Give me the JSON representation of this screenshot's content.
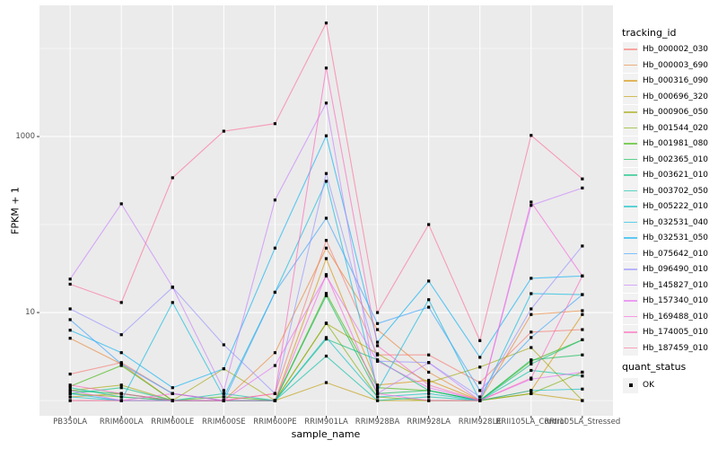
{
  "figure": {
    "panel_bg": "#EBEBEB",
    "grid_color": "#FFFFFF",
    "axis_text_color": "#4D4D4D",
    "legend_key_bg": "#F2F2F2",
    "point_color": "#000000"
  },
  "chart_data": {
    "type": "line",
    "title": "",
    "xlabel": "sample_name",
    "ylabel": "FPKM + 1",
    "y_scale": "log10",
    "ylim_log10": [
      -0.173,
      4.49
    ],
    "y_major_ticks": [
      {
        "label": "10",
        "value": 10
      },
      {
        "label": "1000",
        "value": 1000
      }
    ],
    "y_minor_gridlines": [
      1,
      100,
      10000
    ],
    "grid": "on",
    "legend_position": "right",
    "legend_title": "tracking_id",
    "point_legend_title": "quant_status",
    "point_legend_label": "OK",
    "categories": [
      "PB350LA",
      "RRIM600LA",
      "RRIM600LE",
      "RRIM600SE",
      "RRIM600PE",
      "RRIM901LA",
      "RRIM928BA",
      "RRIM928LA",
      "RRIM928LE",
      "RRII105LA_Control",
      "RRII105LA_Stressed"
    ],
    "series": [
      {
        "name": "Hb_000002_030",
        "color": "#F8766D",
        "values": [
          2.0,
          2.7,
          1.2,
          1.0,
          1.2,
          66,
          3.3,
          3.3,
          1.6,
          6.0,
          6.4
        ]
      },
      {
        "name": "Hb_000003_690",
        "color": "#EA8331",
        "values": [
          5.1,
          2.6,
          1.0,
          1.0,
          3.5,
          54,
          6.4,
          2.1,
          1.0,
          9.5,
          10.5
        ]
      },
      {
        "name": "Hb_000316_090",
        "color": "#D89000",
        "values": [
          1.1,
          1.2,
          1.0,
          1.0,
          1.0,
          41,
          1.5,
          1.7,
          1.0,
          1.3,
          9.5
        ]
      },
      {
        "name": "Hb_000696_320",
        "color": "#C09B00",
        "values": [
          1.0,
          1.0,
          1.0,
          1.0,
          1.0,
          1.6,
          1.0,
          1.0,
          1.0,
          1.2,
          1.0
        ]
      },
      {
        "name": "Hb_000906_050",
        "color": "#A3A500",
        "values": [
          1.3,
          1.5,
          1.0,
          2.3,
          1.0,
          7.5,
          3.4,
          1.6,
          2.4,
          4.0,
          1.0
        ]
      },
      {
        "name": "Hb_001544_020",
        "color": "#7CAE00",
        "values": [
          1.2,
          1.1,
          1.0,
          1.0,
          1.0,
          7.6,
          1.1,
          1.0,
          1.0,
          1.2,
          2.1
        ]
      },
      {
        "name": "Hb_001981_080",
        "color": "#39B600",
        "values": [
          1.45,
          2.5,
          1.0,
          1.1,
          1.0,
          16.5,
          1.4,
          1.3,
          1.0,
          2.8,
          4.9
        ]
      },
      {
        "name": "Hb_002365_010",
        "color": "#00BB4E",
        "values": [
          1.3,
          1.2,
          1.0,
          1.0,
          1.0,
          15.5,
          1.2,
          1.3,
          1.0,
          2.9,
          3.3
        ]
      },
      {
        "name": "Hb_003621_010",
        "color": "#00BF7D",
        "values": [
          1.2,
          1.4,
          1.0,
          1.0,
          1.0,
          5.0,
          2.9,
          1.3,
          1.0,
          2.6,
          4.9
        ]
      },
      {
        "name": "Hb_003702_050",
        "color": "#00C1A3",
        "values": [
          1.4,
          1.1,
          1.0,
          1.2,
          1.0,
          3.2,
          1.0,
          1.1,
          1.0,
          2.2,
          1.9
        ]
      },
      {
        "name": "Hb_005222_010",
        "color": "#00BFC4",
        "values": [
          1.1,
          1.0,
          1.0,
          1.0,
          1.0,
          5.2,
          1.1,
          1.2,
          1.0,
          1.3,
          1.35
        ]
      },
      {
        "name": "Hb_032531_040",
        "color": "#00BAE0",
        "values": [
          1.2,
          1.0,
          13,
          1.1,
          17,
          310,
          1.3,
          14,
          1.0,
          16.4,
          16
        ]
      },
      {
        "name": "Hb_032531_050",
        "color": "#00B0F6",
        "values": [
          6.3,
          3.5,
          1.4,
          2.3,
          54,
          1020,
          4.6,
          22.8,
          3.1,
          24.5,
          26
        ]
      },
      {
        "name": "Hb_075642_010",
        "color": "#35A2FF",
        "values": [
          8.3,
          2.6,
          1.2,
          1.0,
          17,
          118,
          7.5,
          11.5,
          1.3,
          5.2,
          16
        ]
      },
      {
        "name": "Hb_096490_010",
        "color": "#9590FF",
        "values": [
          11,
          5.6,
          19.3,
          4.3,
          1.2,
          380,
          2.8,
          2.7,
          1.1,
          11,
          57
        ]
      },
      {
        "name": "Hb_145827_010",
        "color": "#C77CFF",
        "values": [
          24,
          172,
          19.5,
          1.3,
          190,
          2400,
          1.2,
          2.7,
          1.0,
          165,
          260
        ]
      },
      {
        "name": "Hb_157340_010",
        "color": "#E76BF3",
        "values": [
          1.3,
          1.0,
          1.0,
          1.0,
          2.5,
          26,
          2.8,
          1.4,
          1.0,
          1.75,
          2.1
        ]
      },
      {
        "name": "Hb_169488_010",
        "color": "#FA62DB",
        "values": [
          1.0,
          1.0,
          1.2,
          1.0,
          1.0,
          27,
          1.2,
          1.0,
          1.0,
          180,
          26
        ]
      },
      {
        "name": "Hb_174005_010",
        "color": "#FF62BC",
        "values": [
          1.5,
          1.2,
          1.0,
          1.0,
          1.2,
          6000,
          4.2,
          1.5,
          1.0,
          1.8,
          26
        ]
      },
      {
        "name": "Hb_187459_010",
        "color": "#FF6A98",
        "values": [
          21,
          13,
          340,
          1150,
          1400,
          19500,
          10,
          100,
          4.8,
          1030,
          330
        ]
      }
    ]
  }
}
